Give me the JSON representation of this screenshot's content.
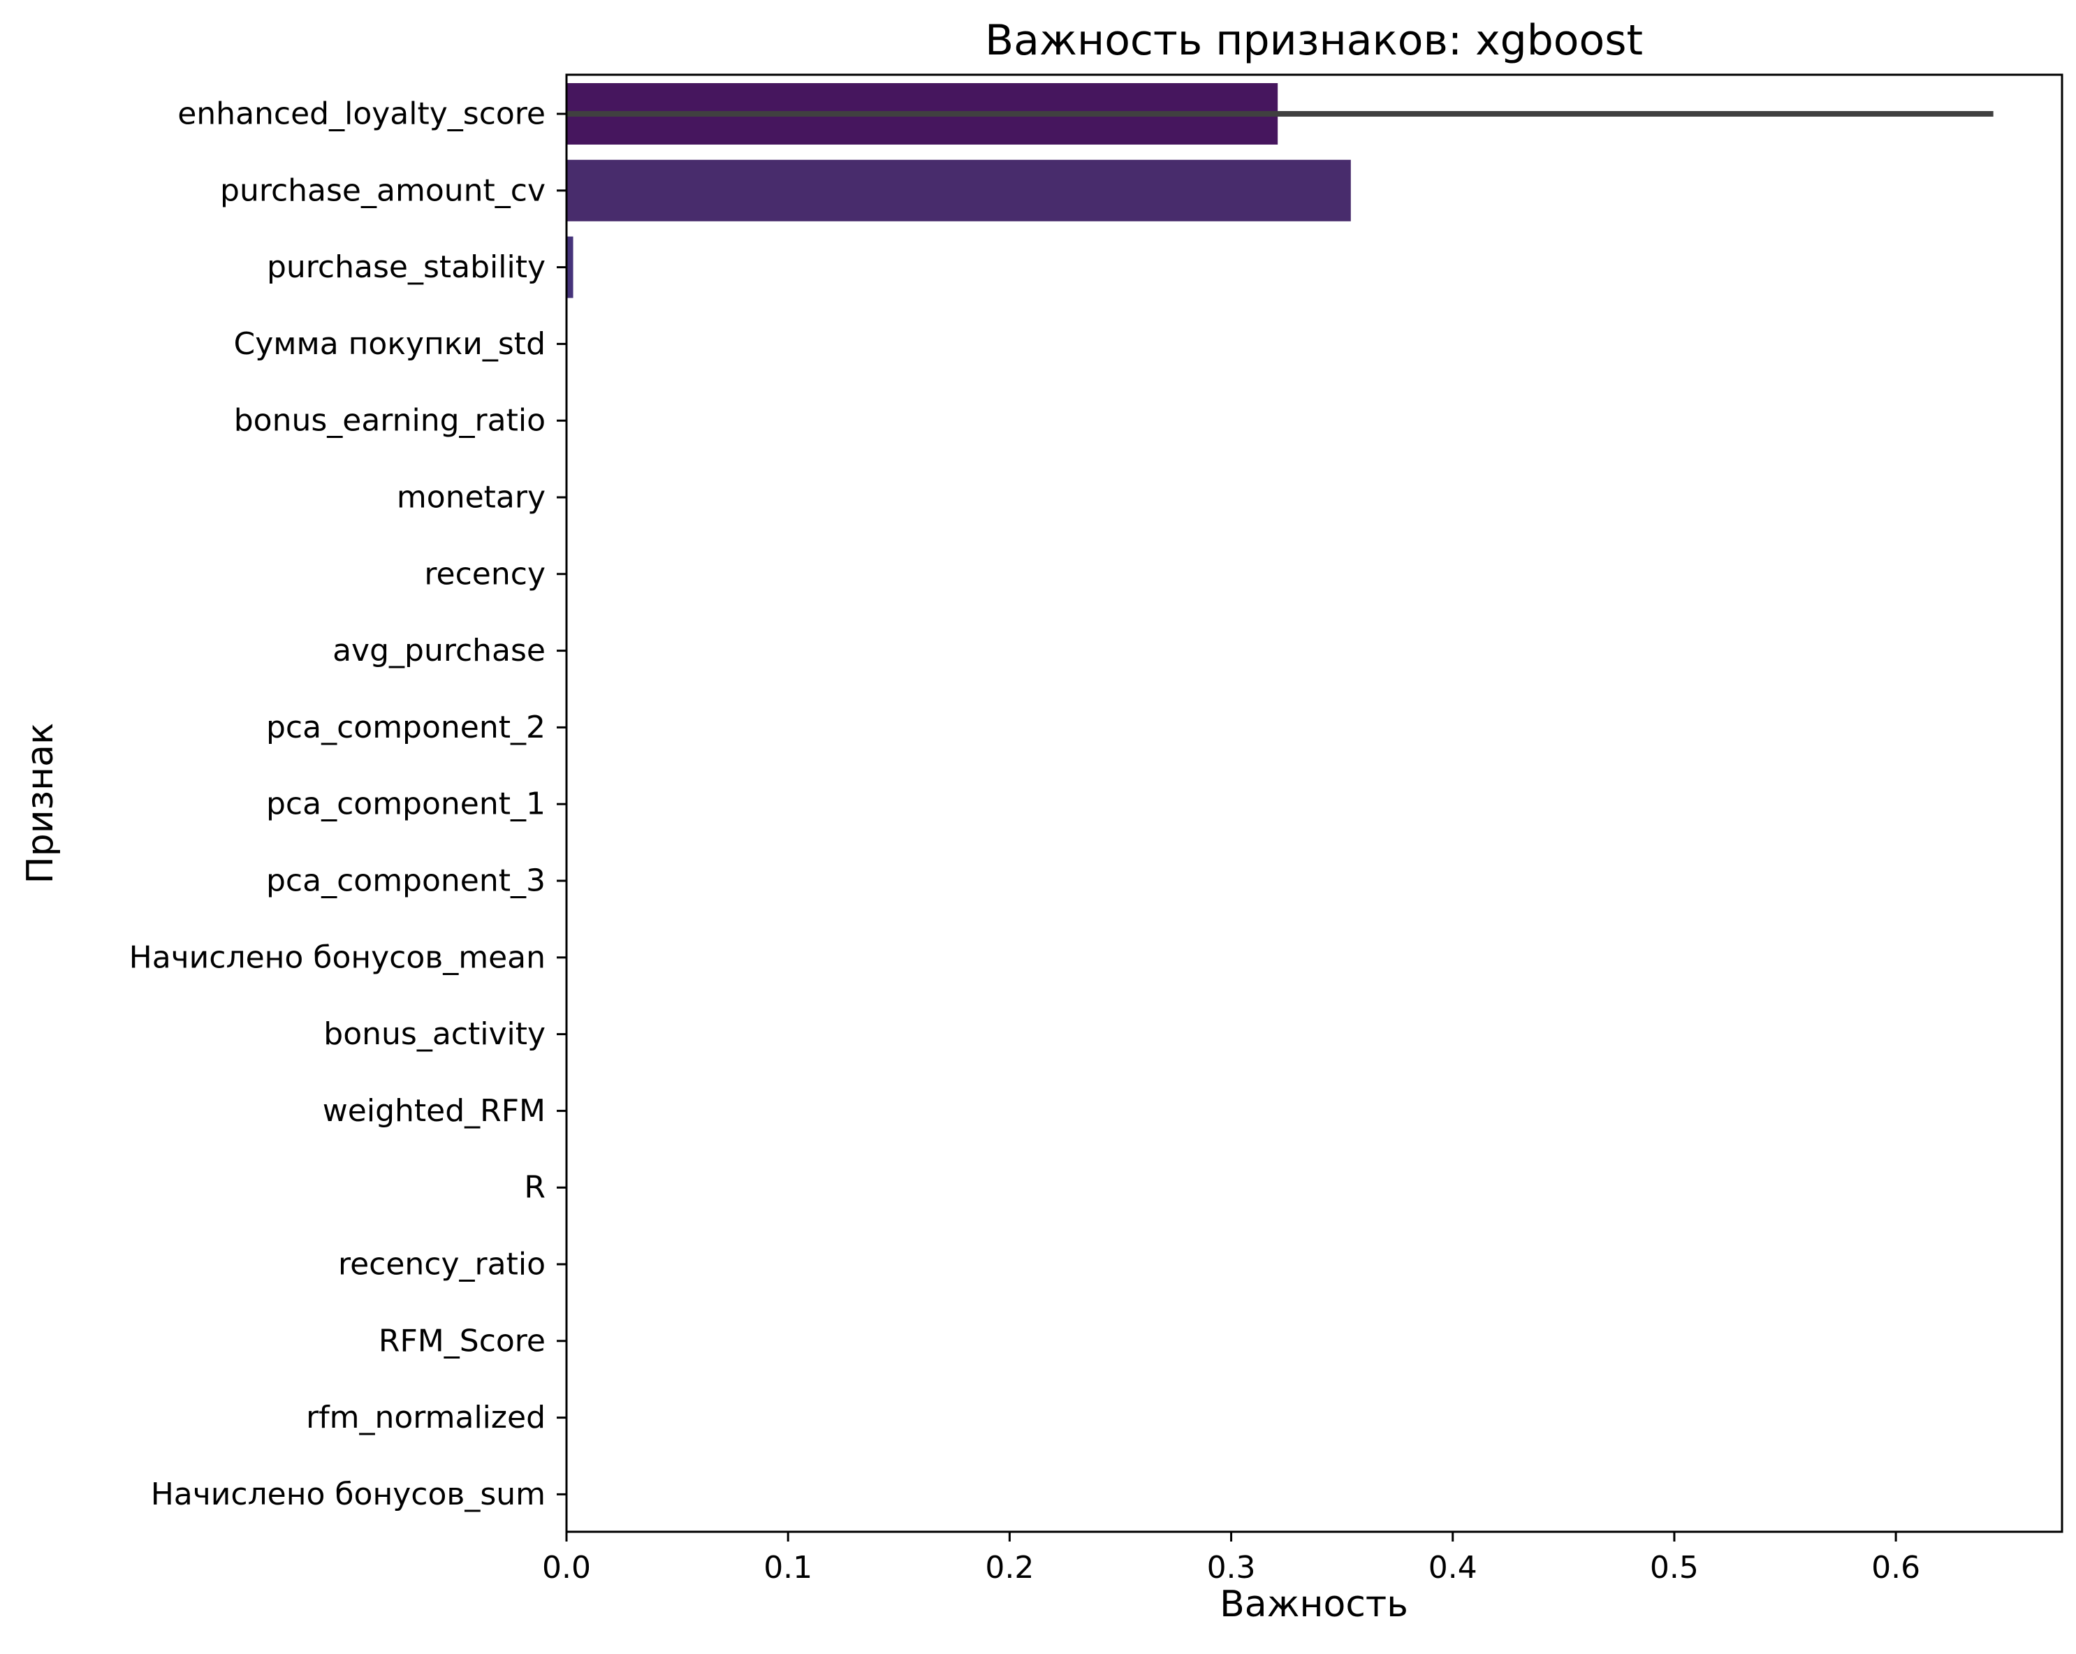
{
  "chart_data": {
    "type": "bar",
    "orientation": "horizontal",
    "title": "Важность признаков: xgboost",
    "xlabel": "Важность",
    "ylabel": "Признак",
    "xlim": [
      0,
      0.675
    ],
    "xticks": [
      "0.0",
      "0.1",
      "0.2",
      "0.3",
      "0.4",
      "0.5",
      "0.6"
    ],
    "xtick_values": [
      0.0,
      0.1,
      0.2,
      0.3,
      0.4,
      0.5,
      0.6
    ],
    "grid": false,
    "legend": "none",
    "categories": [
      "enhanced_loyalty_score",
      "purchase_amount_cv",
      "purchase_stability",
      "Сумма покупки_std",
      "bonus_earning_ratio",
      "monetary",
      "recency",
      "avg_purchase",
      "pca_component_2",
      "pca_component_1",
      "pca_component_3",
      "Начислено бонусов_mean",
      "bonus_activity",
      "weighted_RFM",
      "R",
      "recency_ratio",
      "RFM_Score",
      "rfm_normalized",
      "Начислено бонусов_sum"
    ],
    "values": [
      0.321,
      0.354,
      0.003,
      0,
      0,
      0,
      0,
      0,
      0,
      0,
      0,
      0,
      0,
      0,
      0,
      0,
      0,
      0,
      0
    ],
    "error_bars": [
      {
        "category": "enhanced_loyalty_score",
        "low": 0.0,
        "high": 0.644
      }
    ],
    "colors": {
      "enhanced_loyalty_score": "#46165e",
      "purchase_amount_cv": "#482c6c",
      "purchase_stability": "#45337a",
      "errorbar": "#404040",
      "axis": "#000000"
    }
  }
}
